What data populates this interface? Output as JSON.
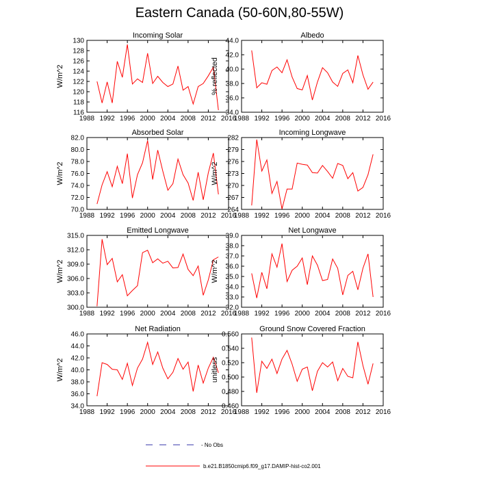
{
  "title": "Eastern Canada (50-60N,80-55W)",
  "legend": {
    "no_obs_label": "- No Obs",
    "model_label": "b.e21.B1850cmip6.f09_g17.DAMIP-hist-co2.001",
    "no_obs_color": "#3333aa",
    "model_color": "#ff0000"
  },
  "chart_data": [
    {
      "type": "line",
      "title": "Incoming Solar",
      "ylabel": "W/m^2",
      "xlim": [
        1988,
        2016
      ],
      "xticks": [
        "1988",
        "1992",
        "1996",
        "2000",
        "2004",
        "2008",
        "2012",
        "2016"
      ],
      "ylim": [
        116,
        130
      ],
      "yticks": [
        "116",
        "118",
        "120",
        "122",
        "124",
        "126",
        "128",
        "130"
      ],
      "series": [
        {
          "color": "#ff0000",
          "x": [
            1990,
            1991,
            1992,
            1993,
            1994,
            1995,
            1996,
            1997,
            1998,
            1999,
            2000,
            2001,
            2002,
            2003,
            2004,
            2005,
            2006,
            2007,
            2008,
            2009,
            2010,
            2011,
            2012,
            2013,
            2014
          ],
          "values": [
            122.0,
            117.8,
            121.9,
            117.8,
            125.9,
            122.8,
            129.2,
            121.5,
            122.5,
            121.8,
            127.5,
            121.6,
            123.0,
            121.8,
            121.0,
            121.5,
            125.0,
            120.3,
            121.0,
            117.6,
            121.0,
            121.6,
            123.1,
            124.8,
            116.4
          ]
        }
      ]
    },
    {
      "type": "line",
      "title": "Albedo",
      "ylabel": "% reflected",
      "xlim": [
        1988,
        2016
      ],
      "xticks": [
        "1988",
        "1992",
        "1996",
        "2000",
        "2004",
        "2008",
        "2012",
        "2016"
      ],
      "ylim": [
        34,
        44
      ],
      "yticks": [
        "34.0",
        "36.0",
        "38.0",
        "40.0",
        "42.0",
        "44.0"
      ],
      "series": [
        {
          "color": "#ff0000",
          "x": [
            1990,
            1991,
            1992,
            1993,
            1994,
            1995,
            1996,
            1997,
            1998,
            1999,
            2000,
            2001,
            2002,
            2003,
            2004,
            2005,
            2006,
            2007,
            2008,
            2009,
            2010,
            2011,
            2012,
            2013,
            2014
          ],
          "values": [
            42.6,
            37.4,
            38.1,
            37.9,
            39.8,
            40.3,
            39.5,
            41.3,
            38.9,
            37.3,
            37.1,
            39.1,
            35.7,
            38.2,
            40.2,
            39.5,
            38.2,
            37.6,
            39.4,
            39.9,
            38.1,
            41.9,
            39.2,
            37.2,
            38.2
          ]
        }
      ]
    },
    {
      "type": "line",
      "title": "Absorbed Solar",
      "ylabel": "W/m^2",
      "xlim": [
        1988,
        2016
      ],
      "xticks": [
        "1988",
        "1992",
        "1996",
        "2000",
        "2004",
        "2008",
        "2012",
        "2016"
      ],
      "ylim": [
        70,
        82
      ],
      "yticks": [
        "70.0",
        "72.0",
        "74.0",
        "76.0",
        "78.0",
        "80.0",
        "82.0"
      ],
      "series": [
        {
          "color": "#ff0000",
          "x": [
            1990,
            1991,
            1992,
            1993,
            1994,
            1995,
            1996,
            1997,
            1998,
            1999,
            2000,
            2001,
            2002,
            2003,
            2004,
            2005,
            2006,
            2007,
            2008,
            2009,
            2010,
            2011,
            2012,
            2013,
            2014
          ],
          "values": [
            70.9,
            74.1,
            76.3,
            73.8,
            77.2,
            74.3,
            79.3,
            71.9,
            75.8,
            77.8,
            81.5,
            75.0,
            79.9,
            76.4,
            73.2,
            74.3,
            78.4,
            75.8,
            74.4,
            71.5,
            76.2,
            71.6,
            76.1,
            79.4,
            72.5
          ]
        }
      ]
    },
    {
      "type": "line",
      "title": "Incoming Longwave",
      "ylabel": "W/m^2",
      "xlim": [
        1988,
        2016
      ],
      "xticks": [
        "1988",
        "1992",
        "1996",
        "2000",
        "2004",
        "2008",
        "2012",
        "2016"
      ],
      "ylim": [
        264,
        282
      ],
      "yticks": [
        "264",
        "267",
        "270",
        "273",
        "276",
        "279",
        "282"
      ],
      "series": [
        {
          "color": "#ff0000",
          "x": [
            1990,
            1991,
            1992,
            1993,
            1994,
            1995,
            1996,
            1997,
            1998,
            1999,
            2000,
            2001,
            2002,
            2003,
            2004,
            2005,
            2006,
            2007,
            2008,
            2009,
            2010,
            2011,
            2012,
            2013,
            2014
          ],
          "values": [
            265.0,
            281.5,
            273.6,
            276.4,
            268.0,
            271.0,
            264.1,
            269.1,
            269.1,
            275.6,
            275.3,
            275.1,
            273.2,
            273.1,
            275.0,
            273.5,
            271.8,
            275.5,
            275.0,
            271.7,
            273.2,
            268.6,
            269.5,
            272.7,
            277.8
          ]
        }
      ]
    },
    {
      "type": "line",
      "title": "Emitted Longwave",
      "ylabel": "W/m^2",
      "xlim": [
        1988,
        2016
      ],
      "xticks": [
        "1988",
        "1992",
        "1996",
        "2000",
        "2004",
        "2008",
        "2012",
        "2016"
      ],
      "ylim": [
        300,
        315
      ],
      "yticks": [
        "300.0",
        "303.0",
        "306.0",
        "309.0",
        "312.0",
        "315.0"
      ],
      "series": [
        {
          "color": "#ff0000",
          "x": [
            1990,
            1991,
            1992,
            1993,
            1994,
            1995,
            1996,
            1997,
            1998,
            1999,
            2000,
            2001,
            2002,
            2003,
            2004,
            2005,
            2006,
            2007,
            2008,
            2009,
            2010,
            2011,
            2012,
            2013,
            2014
          ],
          "values": [
            300.2,
            314.2,
            308.9,
            310.2,
            305.3,
            306.8,
            302.4,
            303.5,
            304.5,
            311.4,
            311.9,
            309.3,
            310.1,
            309.2,
            309.6,
            308.2,
            308.3,
            311.1,
            307.9,
            306.6,
            308.6,
            302.5,
            305.7,
            309.9,
            310.5
          ]
        }
      ]
    },
    {
      "type": "line",
      "title": "Net Longwave",
      "ylabel": "W/m^2",
      "xlim": [
        1988,
        2016
      ],
      "xticks": [
        "1988",
        "1992",
        "1996",
        "2000",
        "2004",
        "2008",
        "2012",
        "2016"
      ],
      "ylim": [
        32,
        39
      ],
      "yticks": [
        "32.0",
        "33.0",
        "34.0",
        "35.0",
        "36.0",
        "37.0",
        "38.0",
        "39.0"
      ],
      "series": [
        {
          "color": "#ff0000",
          "x": [
            1990,
            1991,
            1992,
            1993,
            1994,
            1995,
            1996,
            1997,
            1998,
            1999,
            2000,
            2001,
            2002,
            2003,
            2004,
            2005,
            2006,
            2007,
            2008,
            2009,
            2010,
            2011,
            2012,
            2013,
            2014
          ],
          "values": [
            35.3,
            32.9,
            35.4,
            33.8,
            37.2,
            35.9,
            38.2,
            34.5,
            35.6,
            36.0,
            36.8,
            34.2,
            37.0,
            36.1,
            34.6,
            34.7,
            36.7,
            35.8,
            33.2,
            35.1,
            35.5,
            33.7,
            35.8,
            37.2,
            33.0
          ]
        }
      ]
    },
    {
      "type": "line",
      "title": "Net Radiation",
      "ylabel": "W/m^2",
      "xlim": [
        1988,
        2016
      ],
      "xticks": [
        "1988",
        "1992",
        "1996",
        "2000",
        "2004",
        "2008",
        "2012",
        "2016"
      ],
      "ylim": [
        34,
        46
      ],
      "yticks": [
        "34.0",
        "36.0",
        "38.0",
        "40.0",
        "42.0",
        "44.0",
        "46.0"
      ],
      "series": [
        {
          "color": "#ff0000",
          "x": [
            1990,
            1991,
            1992,
            1993,
            1994,
            1995,
            1996,
            1997,
            1998,
            1999,
            2000,
            2001,
            2002,
            2003,
            2004,
            2005,
            2006,
            2007,
            2008,
            2009,
            2010,
            2011,
            2012,
            2013,
            2014
          ],
          "values": [
            35.6,
            41.2,
            40.9,
            40.1,
            40.0,
            38.4,
            41.1,
            37.4,
            40.3,
            41.8,
            44.6,
            40.9,
            43.0,
            40.3,
            38.5,
            39.6,
            41.9,
            40.1,
            41.3,
            36.4,
            40.8,
            37.8,
            40.3,
            42.1,
            39.5
          ]
        }
      ]
    },
    {
      "type": "line",
      "title": "Ground Snow Covered Fraction",
      "ylabel": "unitless",
      "xlim": [
        1988,
        2016
      ],
      "xticks": [
        "1988",
        "1992",
        "1996",
        "2000",
        "2004",
        "2008",
        "2012",
        "2016"
      ],
      "ylim": [
        0.46,
        0.56
      ],
      "yticks": [
        "0.460",
        "0.480",
        "0.500",
        "0.520",
        "0.540",
        "0.560"
      ],
      "series": [
        {
          "color": "#ff0000",
          "x": [
            1990,
            1991,
            1992,
            1993,
            1994,
            1995,
            1996,
            1997,
            1998,
            1999,
            2000,
            2001,
            2002,
            2003,
            2004,
            2005,
            2006,
            2007,
            2008,
            2009,
            2010,
            2011,
            2012,
            2013,
            2014
          ],
          "values": [
            0.555,
            0.478,
            0.522,
            0.512,
            0.525,
            0.505,
            0.525,
            0.537,
            0.518,
            0.494,
            0.511,
            0.514,
            0.481,
            0.508,
            0.52,
            0.514,
            0.521,
            0.495,
            0.512,
            0.501,
            0.499,
            0.549,
            0.516,
            0.49,
            0.519
          ]
        }
      ]
    }
  ]
}
